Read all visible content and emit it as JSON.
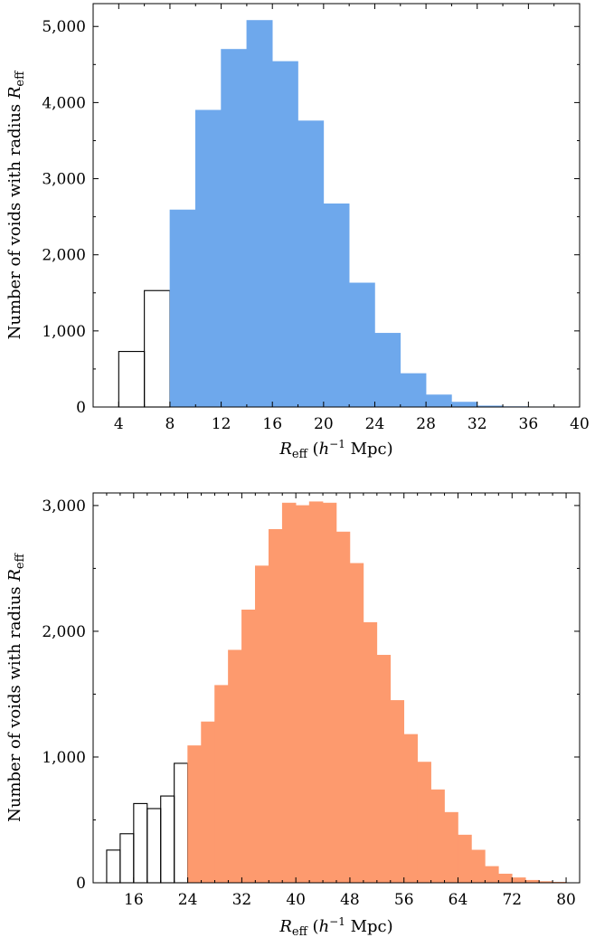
{
  "chart_data": [
    {
      "type": "bar",
      "subtype": "histogram",
      "xlabel": "R_eff (h^-1 Mpc)",
      "ylabel": "Number of voids with radius R_eff",
      "xlabel_parts": {
        "var": "R",
        "sub": "eff",
        "pre_unit": " (",
        "unit_var": "h",
        "exp": "−1",
        "post_unit": " Mpc)"
      },
      "ylabel_parts": {
        "text": "Number of voids with radius ",
        "var": "R",
        "sub": "eff"
      },
      "xlim": [
        2,
        40
      ],
      "ylim": [
        0,
        5300
      ],
      "xticks": [
        4,
        8,
        12,
        16,
        20,
        24,
        28,
        32,
        36,
        40
      ],
      "yticks": [
        0,
        1000,
        2000,
        3000,
        4000,
        5000
      ],
      "ytick_labels": [
        "0",
        "1,000",
        "2,000",
        "3,000",
        "4,000",
        "5,000"
      ],
      "grid": false,
      "colors": {
        "unfilled_edge": "#000000",
        "filled": "#6ea8ec"
      },
      "series": [
        {
          "style": "unfilled",
          "bins": [
            [
              4,
              6
            ],
            [
              6,
              8
            ]
          ],
          "values": [
            730,
            1530
          ]
        },
        {
          "style": "filled",
          "bins": [
            [
              8,
              10
            ],
            [
              10,
              12
            ],
            [
              12,
              14
            ],
            [
              14,
              16
            ],
            [
              16,
              18
            ],
            [
              18,
              20
            ],
            [
              20,
              22
            ],
            [
              22,
              24
            ],
            [
              24,
              26
            ],
            [
              26,
              28
            ],
            [
              28,
              30
            ],
            [
              30,
              32
            ],
            [
              32,
              34
            ],
            [
              34,
              36
            ],
            [
              36,
              38
            ]
          ],
          "values": [
            2590,
            3900,
            4700,
            5080,
            4540,
            3760,
            2670,
            1630,
            970,
            440,
            160,
            65,
            15,
            5,
            3
          ]
        }
      ]
    },
    {
      "type": "bar",
      "subtype": "histogram",
      "xlabel": "R_eff (h^-1 Mpc)",
      "ylabel": "Number of voids with radius R_eff",
      "xlabel_parts": {
        "var": "R",
        "sub": "eff",
        "pre_unit": " (",
        "unit_var": "h",
        "exp": "−1",
        "post_unit": " Mpc)"
      },
      "ylabel_parts": {
        "text": "Number of voids with radius ",
        "var": "R",
        "sub": "eff"
      },
      "xlim": [
        10,
        82
      ],
      "ylim": [
        0,
        3100
      ],
      "xticks": [
        16,
        24,
        32,
        40,
        48,
        56,
        64,
        72,
        80
      ],
      "yticks": [
        0,
        1000,
        2000,
        3000
      ],
      "ytick_labels": [
        "0",
        "1,000",
        "2,000",
        "3,000"
      ],
      "grid": false,
      "colors": {
        "unfilled_edge": "#000000",
        "filled": "#fd9a6e"
      },
      "series": [
        {
          "style": "unfilled",
          "bins": [
            [
              12,
              14
            ],
            [
              14,
              16
            ],
            [
              16,
              18
            ],
            [
              18,
              20
            ],
            [
              20,
              22
            ],
            [
              22,
              24
            ]
          ],
          "values": [
            260,
            390,
            630,
            590,
            690,
            950
          ]
        },
        {
          "style": "filled",
          "bins": [
            [
              24,
              26
            ],
            [
              26,
              28
            ],
            [
              28,
              30
            ],
            [
              30,
              32
            ],
            [
              32,
              34
            ],
            [
              34,
              36
            ],
            [
              36,
              38
            ],
            [
              38,
              40
            ],
            [
              40,
              42
            ],
            [
              42,
              44
            ],
            [
              44,
              46
            ],
            [
              46,
              48
            ],
            [
              48,
              50
            ],
            [
              50,
              52
            ],
            [
              52,
              54
            ],
            [
              54,
              56
            ],
            [
              56,
              58
            ],
            [
              58,
              60
            ],
            [
              60,
              62
            ],
            [
              62,
              64
            ],
            [
              64,
              66
            ],
            [
              66,
              68
            ],
            [
              68,
              70
            ],
            [
              70,
              72
            ],
            [
              72,
              74
            ],
            [
              74,
              76
            ],
            [
              76,
              78
            ],
            [
              78,
              80
            ]
          ],
          "values": [
            1090,
            1280,
            1570,
            1850,
            2170,
            2520,
            2810,
            3020,
            3000,
            3030,
            3020,
            2790,
            2540,
            2070,
            1810,
            1450,
            1180,
            960,
            740,
            560,
            380,
            260,
            130,
            70,
            40,
            20,
            10,
            5
          ]
        }
      ]
    }
  ]
}
